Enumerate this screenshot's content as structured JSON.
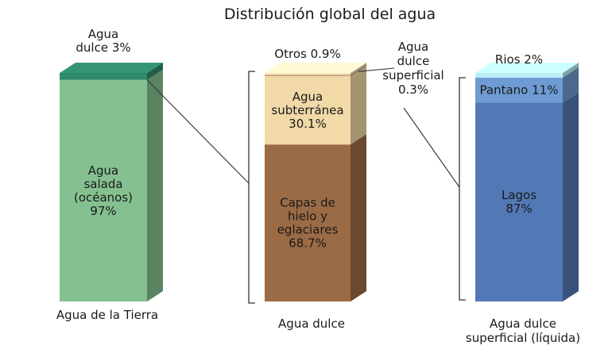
{
  "chart_data": {
    "type": "bar",
    "title": "Distribución global del agua",
    "xlabel": "",
    "ylabel": "",
    "categories": [
      "Agua de la Tierra",
      "Agua dulce",
      "Agua dulce superficial (líquida)"
    ],
    "stacks": [
      {
        "category": "Agua de la Tierra",
        "category_lines": [
          "Agua de la Tierra"
        ],
        "segments": [
          {
            "name": "Agua salada (océanos)",
            "value": 97,
            "label_lines": [
              "Agua",
              "salada",
              "(océanos)",
              "97%"
            ],
            "label_position": "inside",
            "color": "#85c190"
          },
          {
            "name": "Agua dulce",
            "value": 3,
            "label_lines": [
              "Agua",
              "dulce 3%"
            ],
            "label_position": "above",
            "color": "#2f8a6a"
          }
        ]
      },
      {
        "category": "Agua dulce",
        "category_lines": [
          "Agua dulce"
        ],
        "segments": [
          {
            "name": "Capas de hielo y eglaciares",
            "value": 68.7,
            "label_lines": [
              "Capas de",
              "hielo y",
              "eglaciares",
              "68.7%"
            ],
            "label_position": "inside",
            "color": "#9b6b45"
          },
          {
            "name": "Agua subterránea",
            "value": 30.1,
            "label_lines": [
              "Agua",
              "subterránea",
              "30.1%"
            ],
            "label_position": "inside",
            "color": "#f1d9a8"
          },
          {
            "name": "Agua dulce superficial",
            "value": 0.3,
            "label_lines": [
              "Agua",
              "dulce",
              "superficial",
              "0.3%"
            ],
            "label_position": "right",
            "color": "#a0522d"
          },
          {
            "name": "Otros",
            "value": 0.9,
            "label_lines": [
              "Otros 0.9%"
            ],
            "label_position": "above",
            "color": "#f6e7c4"
          }
        ]
      },
      {
        "category": "Agua dulce superficial (líquida)",
        "category_lines": [
          "Agua dulce",
          "superficial (líquida)"
        ],
        "segments": [
          {
            "name": "Lagos",
            "value": 87,
            "label_lines": [
              "Lagos",
              "87%"
            ],
            "label_position": "inside",
            "color": "#5279b6"
          },
          {
            "name": "Pantano",
            "value": 11,
            "label_lines": [
              "Pantano 11%"
            ],
            "label_position": "inside",
            "color": "#6e9bd3"
          },
          {
            "name": "Rios",
            "value": 2,
            "label_lines": [
              "Rios 2%"
            ],
            "label_position": "above",
            "color": "#bdeef7"
          }
        ]
      }
    ]
  }
}
